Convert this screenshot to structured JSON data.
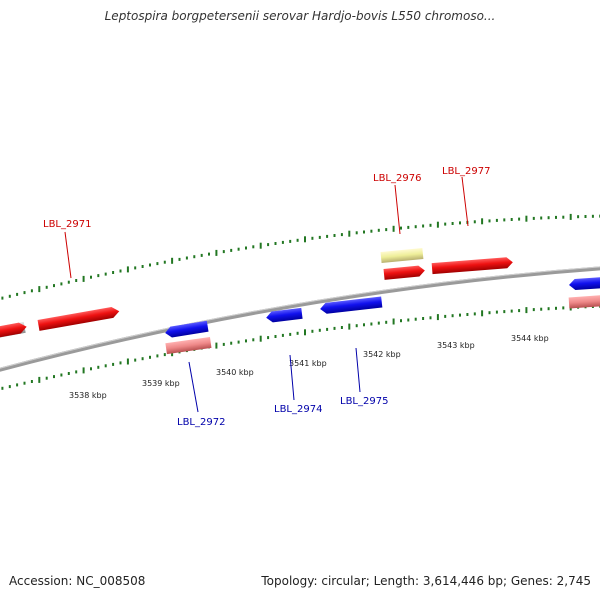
{
  "title": "Leptospira borgpetersenii serovar Hardjo-bovis L550 chromoso...",
  "footer": {
    "accession": "Accession: NC_008508",
    "topology": "Topology: circular; Length: 3,614,446 bp; Genes: 2,745"
  },
  "colors": {
    "backbone": "#7a7a7a",
    "forward_gene": "#ee1111",
    "reverse_gene": "#1111ee",
    "forward_label": "#cc0000",
    "reverse_label": "#0000aa",
    "pseudo_gene_forward": "#eeee99",
    "pseudo_gene_reverse": "#ee8888",
    "other_gene": "#bbbbbb",
    "ticks": "#227722"
  },
  "scale": {
    "tick_labels": [
      "3538 kbp",
      "3539 kbp",
      "3540 kbp",
      "3541 kbp",
      "3542 kbp",
      "3543 kbp",
      "3544 kbp"
    ]
  },
  "genes": {
    "labeled_forward": [
      "LBL_2971",
      "LBL_2976",
      "LBL_2977"
    ],
    "labeled_reverse": [
      "LBL_2972",
      "LBL_2974",
      "LBL_2975"
    ]
  }
}
